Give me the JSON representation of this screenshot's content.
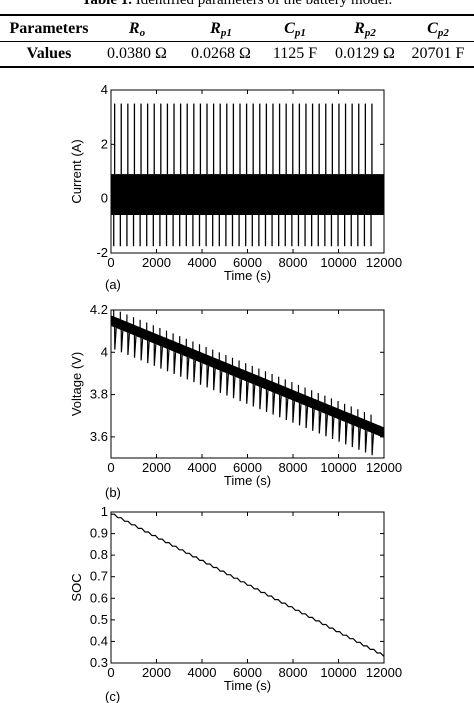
{
  "table": {
    "caption_label": "Table 1.",
    "caption_text": "Identified parameters of the battery model.",
    "row_header": "Parameters",
    "row_values_label": "Values",
    "columns": [
      {
        "sym": "R",
        "sub": "o",
        "value": "0.0380 Ω"
      },
      {
        "sym": "R",
        "sub": "p1",
        "value": "0.0268 Ω"
      },
      {
        "sym": "C",
        "sub": "p1",
        "value": "1125 F"
      },
      {
        "sym": "R",
        "sub": "p2",
        "value": "0.0129 Ω"
      },
      {
        "sym": "C",
        "sub": "p2",
        "value": "20701 F"
      }
    ]
  },
  "chart_data": [
    {
      "type": "line",
      "panel_label": "(a)",
      "xlabel": "Time (s)",
      "ylabel": "Current (A)",
      "xlim": [
        0,
        12000
      ],
      "ylim": [
        -2,
        4
      ],
      "x_ticks": [
        0,
        2000,
        4000,
        6000,
        8000,
        10000,
        12000
      ],
      "y_ticks": [
        -2,
        0,
        2,
        4
      ],
      "pattern": {
        "pulse_count": 40,
        "pulse_period_s": 290,
        "discharge_peak_A": 3.5,
        "charge_peak_A": -1.75,
        "band_upper_A": 0.9,
        "band_lower_A": -0.6
      }
    },
    {
      "type": "line",
      "panel_label": "(b)",
      "xlabel": "Time (s)",
      "ylabel": "Voltage (V)",
      "xlim": [
        0,
        12000
      ],
      "ylim": [
        3.5,
        4.2
      ],
      "x_ticks": [
        0,
        2000,
        4000,
        6000,
        8000,
        10000,
        12000
      ],
      "y_ticks": [
        3.6,
        3.8,
        4,
        4.2
      ],
      "trend": {
        "x": [
          0,
          12000
        ],
        "y": [
          4.15,
          3.62
        ]
      },
      "pattern": {
        "pulse_count": 40,
        "pulse_period_s": 290,
        "spike_up_V": 0.06,
        "dip_down_V": 0.13,
        "band_half_width_V": 0.025
      }
    },
    {
      "type": "line",
      "panel_label": "(c)",
      "xlabel": "Time (s)",
      "ylabel": "SOC",
      "xlim": [
        0,
        12000
      ],
      "ylim": [
        0.3,
        1
      ],
      "x_ticks": [
        0,
        2000,
        4000,
        6000,
        8000,
        10000,
        12000
      ],
      "y_ticks": [
        0.3,
        0.4,
        0.5,
        0.6,
        0.7,
        0.8,
        0.9,
        1
      ],
      "x": [
        0,
        12000
      ],
      "y": [
        0.99,
        0.33
      ],
      "steps": 40
    }
  ]
}
